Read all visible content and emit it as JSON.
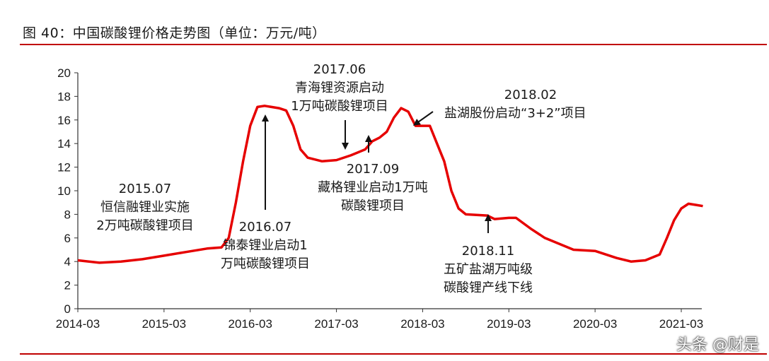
{
  "header": {
    "title": "图 40：中国碳酸锂价格走势图（单位：万元/吨）"
  },
  "colors": {
    "rule": "#c00000",
    "series": "#e60000",
    "text": "#1a1a1a"
  },
  "watermark": "头条 @财是",
  "chart_data": {
    "type": "line",
    "title": "",
    "xlabel": "",
    "ylabel": "",
    "ylim": [
      0,
      20
    ],
    "yticks": [
      0,
      2,
      4,
      6,
      8,
      10,
      12,
      14,
      16,
      18,
      20
    ],
    "xticks": [
      "2014-03",
      "2015-03",
      "2016-03",
      "2017-03",
      "2018-03",
      "2019-03",
      "2020-03",
      "2021-03"
    ],
    "xrange": [
      "2014-03",
      "2021-06"
    ],
    "grid": false,
    "legend": "none",
    "series": [
      {
        "name": "",
        "points": [
          [
            "2014-03",
            4.1
          ],
          [
            "2014-06",
            3.9
          ],
          [
            "2014-09",
            4.0
          ],
          [
            "2014-12",
            4.2
          ],
          [
            "2015-03",
            4.5
          ],
          [
            "2015-06",
            4.8
          ],
          [
            "2015-09",
            5.1
          ],
          [
            "2015-11",
            5.2
          ],
          [
            "2015-12",
            6.0
          ],
          [
            "2016-01",
            9.0
          ],
          [
            "2016-02",
            12.5
          ],
          [
            "2016-03",
            15.5
          ],
          [
            "2016-04",
            17.1
          ],
          [
            "2016-05",
            17.2
          ],
          [
            "2016-07",
            17.0
          ],
          [
            "2016-08",
            16.8
          ],
          [
            "2016-09",
            15.5
          ],
          [
            "2016-10",
            13.5
          ],
          [
            "2016-11",
            12.8
          ],
          [
            "2017-01",
            12.5
          ],
          [
            "2017-03",
            12.6
          ],
          [
            "2017-05",
            13.0
          ],
          [
            "2017-07",
            13.5
          ],
          [
            "2017-08",
            14.2
          ],
          [
            "2017-09",
            14.5
          ],
          [
            "2017-10",
            15.0
          ],
          [
            "2017-11",
            16.2
          ],
          [
            "2017-12",
            17.0
          ],
          [
            "2018-01",
            16.7
          ],
          [
            "2018-02",
            15.5
          ],
          [
            "2018-04",
            15.5
          ],
          [
            "2018-05",
            14.0
          ],
          [
            "2018-06",
            12.5
          ],
          [
            "2018-07",
            10.0
          ],
          [
            "2018-08",
            8.5
          ],
          [
            "2018-09",
            8.0
          ],
          [
            "2018-12",
            7.9
          ],
          [
            "2019-01",
            7.6
          ],
          [
            "2019-03",
            7.7
          ],
          [
            "2019-04",
            7.7
          ],
          [
            "2019-06",
            6.8
          ],
          [
            "2019-08",
            6.0
          ],
          [
            "2019-10",
            5.5
          ],
          [
            "2019-12",
            5.0
          ],
          [
            "2020-03",
            4.9
          ],
          [
            "2020-06",
            4.3
          ],
          [
            "2020-08",
            4.0
          ],
          [
            "2020-10",
            4.1
          ],
          [
            "2020-12",
            4.6
          ],
          [
            "2021-01",
            6.0
          ],
          [
            "2021-02",
            7.5
          ],
          [
            "2021-03",
            8.5
          ],
          [
            "2021-04",
            8.9
          ],
          [
            "2021-05",
            8.8
          ],
          [
            "2021-06",
            8.7
          ]
        ]
      }
    ],
    "annotations": [
      {
        "lines": [
          "2015.07",
          "恒信融锂业实施",
          "2万吨碳酸锂项目"
        ],
        "arrow": "none",
        "target": [
          "2015-07",
          5.0
        ]
      },
      {
        "lines": [
          "2016.07",
          "锦泰锂业启动1",
          "万吨碳酸锂项目"
        ],
        "arrow": "up",
        "target": [
          "2016-07",
          16.5
        ]
      },
      {
        "lines": [
          "2017.06",
          "青海锂资源启动",
          "1万吨碳酸锂项目"
        ],
        "arrow": "down",
        "target": [
          "2017-06",
          13.7
        ]
      },
      {
        "lines": [
          "2017.09",
          "藏格锂业启动1万吨",
          "碳酸锂项目"
        ],
        "arrow": "up",
        "target": [
          "2017-09",
          14.6
        ]
      },
      {
        "lines": [
          "2018.02",
          "盐湖股份启动“3+2”项目"
        ],
        "arrow": "diagonal",
        "target": [
          "2018-02",
          15.8
        ]
      },
      {
        "lines": [
          "2018.11",
          "五矿盐湖万吨级",
          "碳酸锂产线下线"
        ],
        "arrow": "up",
        "target": [
          "2018-11",
          7.8
        ]
      }
    ]
  }
}
